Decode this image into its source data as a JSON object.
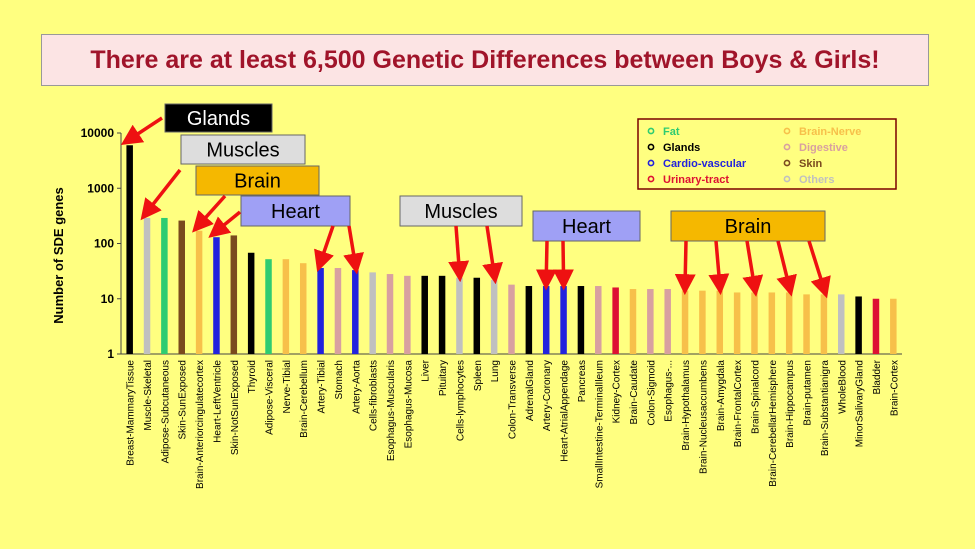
{
  "title": "There are at least 6,500 Genetic Differences between Boys & Girls!",
  "chart_data": {
    "type": "bar",
    "title": "There are at least 6,500 Genetic Differences between Boys & Girls!",
    "xlabel": "",
    "ylabel": "Number of SDE genes",
    "yscale": "log",
    "ylim": [
      1,
      10000
    ],
    "yticks": [
      "1",
      "10",
      "100",
      "1000",
      "10000"
    ],
    "grid": false,
    "legend_position": "top-right",
    "legend": [
      {
        "name": "Fat",
        "color": "#2ecc71"
      },
      {
        "name": "Glands",
        "color": "#000000"
      },
      {
        "name": "Cardio-vascular",
        "color": "#2222dd"
      },
      {
        "name": "Urinary-tract",
        "color": "#dd1133"
      },
      {
        "name": "Brain-Nerve",
        "color": "#f7c04a"
      },
      {
        "name": "Digestive",
        "color": "#d8a0a0"
      },
      {
        "name": "Skin",
        "color": "#7a4a1e"
      },
      {
        "name": "Others",
        "color": "#c0c0c0"
      }
    ],
    "categories": [
      "Breast-MammaryTissue",
      "Muscle-Skeletal",
      "Adipose-Subcutaneous",
      "Skin-SunExposed",
      "Brain-Anteriorcingulatecortex",
      "Heart-LeftVentricle",
      "Skin-NotSunExposed",
      "Thyroid",
      "Adipose-Visceral",
      "Nerve-Tibial",
      "Brain-Cerebellum",
      "Artery-Tibial",
      "Stomach",
      "Artery-Aorta",
      "Cells-fibroblasts",
      "Esophagus-Muscularis",
      "Esophagus-Mucosa",
      "Liver",
      "Pituitary",
      "Cells-lymphocytes",
      "Spleen",
      "Lung",
      "Colon-Transverse",
      "AdrenalGland",
      "Artery-Coronary",
      "Heart-AtrialAppendage",
      "Pancreas",
      "SmallIntestine-TerminalIleum",
      "Kidney-Cortex",
      "Brain-Caudate",
      "Colon-Sigmoid",
      "Esophagus-...",
      "Brain-Hypothalamus",
      "Brain-Nucleusaccumbens",
      "Brain-Amygdala",
      "Brain-FrontalCortex",
      "Brain-Spinalcord",
      "Brain-CerebellarHemisphere",
      "Brain-Hippocampus",
      "Brain-putamen",
      "Brain-Substantianigra",
      "WholeBlood",
      "MinorSalivaryGland",
      "Bladder",
      "Brain-Cortex"
    ],
    "values": [
      6000,
      290,
      290,
      260,
      170,
      130,
      140,
      68,
      52,
      52,
      44,
      36,
      36,
      33,
      30,
      28,
      26,
      26,
      26,
      24,
      24,
      22,
      18,
      17,
      17,
      17,
      17,
      17,
      16,
      15,
      15,
      15,
      14,
      14,
      14,
      13,
      13,
      13,
      13,
      12,
      12,
      12,
      11,
      10,
      10
    ],
    "bar_groups": [
      "Glands",
      "Others",
      "Fat",
      "Skin",
      "Brain-Nerve",
      "Cardio-vascular",
      "Skin",
      "Glands",
      "Fat",
      "Brain-Nerve",
      "Brain-Nerve",
      "Cardio-vascular",
      "Digestive",
      "Cardio-vascular",
      "Others",
      "Digestive",
      "Digestive",
      "Glands",
      "Glands",
      "Others",
      "Glands",
      "Others",
      "Digestive",
      "Glands",
      "Cardio-vascular",
      "Cardio-vascular",
      "Glands",
      "Digestive",
      "Urinary-tract",
      "Brain-Nerve",
      "Digestive",
      "Digestive",
      "Brain-Nerve",
      "Brain-Nerve",
      "Brain-Nerve",
      "Brain-Nerve",
      "Brain-Nerve",
      "Brain-Nerve",
      "Brain-Nerve",
      "Brain-Nerve",
      "Brain-Nerve",
      "Others",
      "Glands",
      "Urinary-tract",
      "Brain-Nerve"
    ],
    "annotations": [
      {
        "label": "Glands",
        "box_color": "#000000",
        "text_color": "#ffffff",
        "targets": [
          0
        ]
      },
      {
        "label": "Muscles",
        "box_color": "#dddddd",
        "text_color": "#000000",
        "targets": [
          1
        ]
      },
      {
        "label": "Brain",
        "box_color": "#f5b800",
        "text_color": "#000000",
        "targets": [
          4
        ]
      },
      {
        "label": "Heart",
        "box_color": "#9fa0f5",
        "text_color": "#000000",
        "targets": [
          5
        ]
      },
      {
        "label": "Heart",
        "box_color": "#9fa0f5",
        "text_color": "#000000",
        "targets": [
          11,
          13
        ]
      },
      {
        "label": "Muscles",
        "box_color": "#dddddd",
        "text_color": "#000000",
        "targets": [
          19,
          21
        ]
      },
      {
        "label": "Heart",
        "box_color": "#9fa0f5",
        "text_color": "#000000",
        "targets": [
          24,
          25
        ]
      },
      {
        "label": "Brain",
        "box_color": "#f5b800",
        "text_color": "#000000",
        "targets": [
          32,
          34,
          36,
          38,
          40
        ]
      }
    ]
  }
}
